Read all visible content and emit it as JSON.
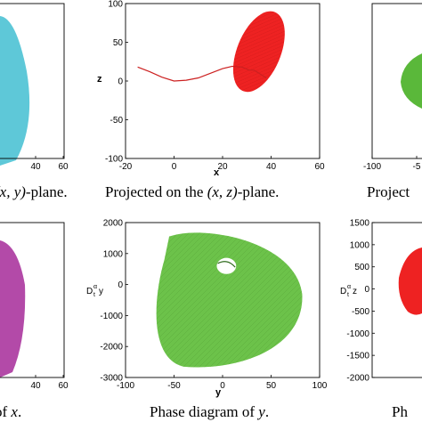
{
  "chart_data": [
    {
      "id": "xy",
      "type": "scatter",
      "title": "",
      "xlabel": "",
      "ylabel": "",
      "xlim": [
        20,
        60
      ],
      "x_ticks": [
        "40",
        "60"
      ],
      "y_ticks": [],
      "color": "#5ec8d8",
      "caption_parts": [
        "(x, y)",
        "-plane."
      ]
    },
    {
      "id": "xz",
      "type": "scatter",
      "title": "",
      "xlabel": "x",
      "ylabel": "z",
      "xlim": [
        -20,
        60
      ],
      "ylim": [
        -100,
        100
      ],
      "x_ticks": [
        "-20",
        "0",
        "20",
        "40",
        "60"
      ],
      "y_ticks": [
        "100",
        "50",
        "0",
        "-50",
        "-100"
      ],
      "color": "#ee2222",
      "transient_color": "#cc2020",
      "transient": [
        [
          -15,
          18
        ],
        [
          -10,
          12
        ],
        [
          -5,
          5
        ],
        [
          0,
          0
        ],
        [
          5,
          1
        ],
        [
          10,
          4
        ],
        [
          15,
          10
        ],
        [
          20,
          16
        ],
        [
          24,
          19
        ],
        [
          28,
          18
        ],
        [
          31,
          14
        ],
        [
          33,
          14
        ],
        [
          35,
          10
        ],
        [
          38,
          4
        ]
      ],
      "attractor": {
        "cx": 35,
        "cz": 38,
        "rx": 9,
        "rz": 55
      },
      "caption_parts": [
        "Projected on the ",
        "(x, z)",
        "-plane."
      ]
    },
    {
      "id": "yz",
      "type": "scatter",
      "title": "",
      "xlabel": "",
      "ylabel": "",
      "x_ticks": [
        "-100",
        "-5"
      ],
      "y_ticks": [],
      "color": "#5ab83a",
      "caption_parts": [
        "Project"
      ]
    },
    {
      "id": "phase-x",
      "type": "scatter",
      "title": "",
      "xlabel": "",
      "ylabel": "",
      "x_ticks": [
        "40",
        "60"
      ],
      "y_ticks": [],
      "color": "#b34aa8",
      "caption_parts": [
        "of ",
        "x",
        "."
      ]
    },
    {
      "id": "phase-y",
      "type": "scatter",
      "title": "",
      "xlabel": "y",
      "ylabel": "D_t^α y",
      "xlim": [
        -100,
        100
      ],
      "ylim": [
        -3000,
        2000
      ],
      "x_ticks": [
        "-100",
        "-50",
        "0",
        "50",
        "100"
      ],
      "y_ticks": [
        "2000",
        "1000",
        "0",
        "-1000",
        "-2000",
        "-3000"
      ],
      "color": "#6cc24a",
      "attractor": {
        "cx": 5,
        "cy": 0,
        "hole_cx": 4,
        "hole_cy": 600,
        "hole_rx": 10,
        "hole_ry": 260
      },
      "caption_parts": [
        "Phase diagram of ",
        "y",
        "."
      ]
    },
    {
      "id": "phase-z",
      "type": "scatter",
      "title": "",
      "xlabel": "",
      "ylabel": "D_t^α z",
      "ylim": [
        -2000,
        1500
      ],
      "x_ticks": [],
      "y_ticks": [
        "1500",
        "1000",
        "500",
        "0",
        "-500",
        "-1000",
        "-1500",
        "-2000"
      ],
      "color": "#ee2222",
      "caption_parts": [
        "Ph"
      ]
    }
  ]
}
